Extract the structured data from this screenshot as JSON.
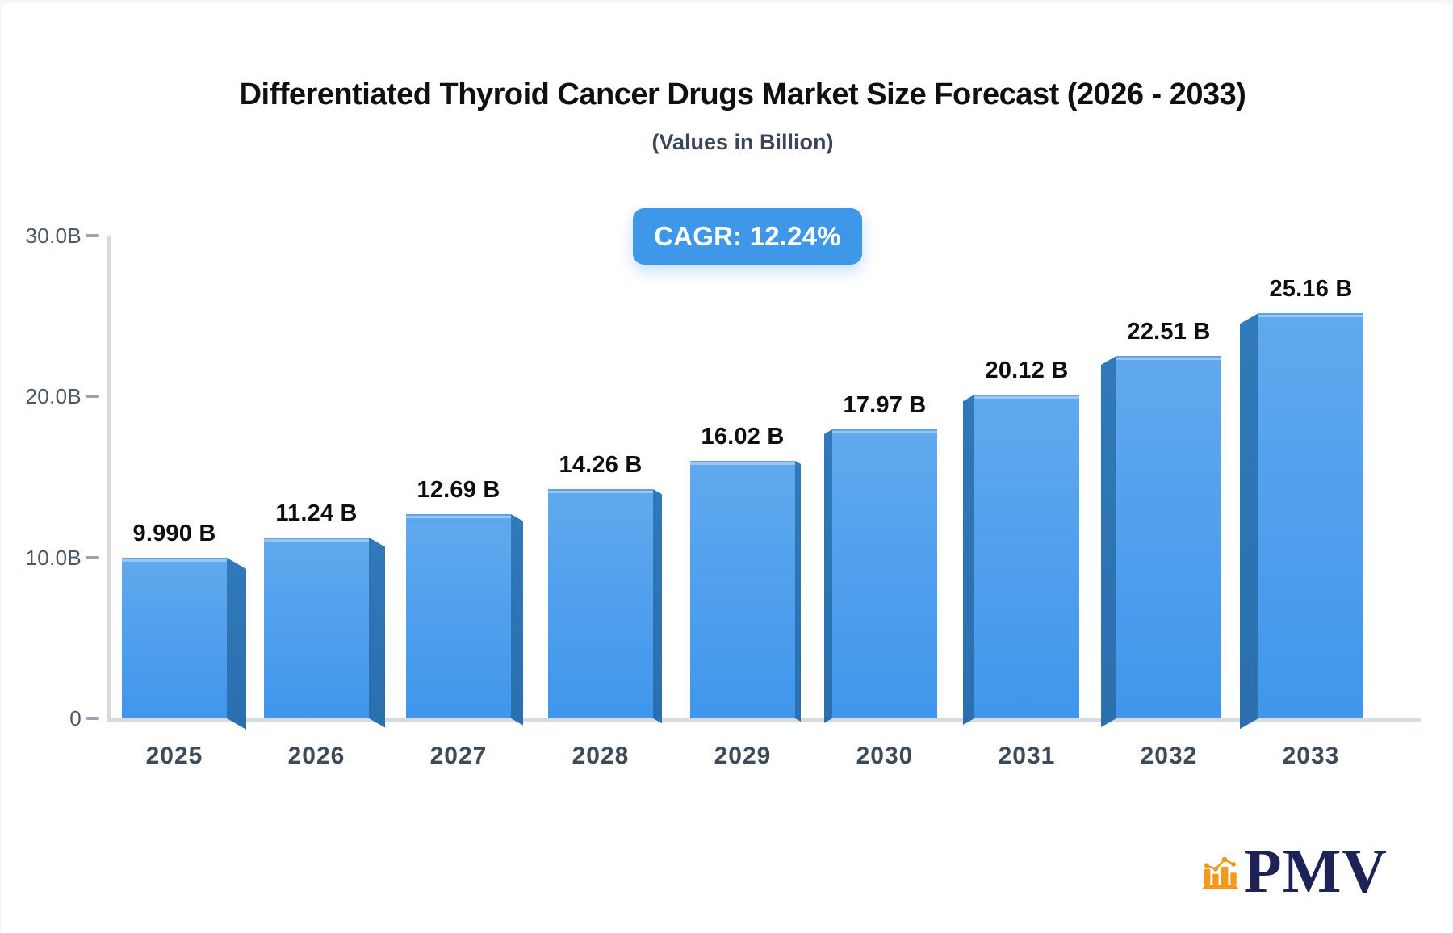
{
  "page": {
    "background": "#f5f6f8",
    "card_background": "#ffffff"
  },
  "header": {
    "title": "Differentiated Thyroid Cancer Drugs Market Size Forecast (2026 - 2033)",
    "subtitle": "(Values in Billion)"
  },
  "cagr_badge": {
    "label": "CAGR: 12.24%",
    "background": "#3e97e9",
    "text_color": "#ffffff"
  },
  "chart_data": {
    "type": "bar",
    "title": "Differentiated Thyroid Cancer Drugs Market Size Forecast (2026 - 2033)",
    "subtitle": "(Values in Billion)",
    "categories": [
      "2025",
      "2026",
      "2027",
      "2028",
      "2029",
      "2030",
      "2031",
      "2032",
      "2033"
    ],
    "values": [
      9.99,
      11.24,
      12.69,
      14.26,
      16.02,
      17.97,
      20.12,
      22.51,
      25.16
    ],
    "value_labels": [
      "9.990 B",
      "11.24 B",
      "12.69 B",
      "14.26 B",
      "16.02 B",
      "17.97 B",
      "20.12 B",
      "22.51 B",
      "25.16 B"
    ],
    "annotation": "CAGR: 12.24%",
    "xlabel": "",
    "ylabel": "",
    "ylim": [
      0,
      30
    ],
    "y_ticks": [
      {
        "value": 30,
        "label": "30.0B"
      },
      {
        "value": 20,
        "label": "20.0B"
      },
      {
        "value": 10,
        "label": "10.0B"
      },
      {
        "value": 0,
        "label": "0"
      }
    ],
    "grid": false,
    "legend": "none",
    "bar_style": "3d-perspective",
    "bar_color_top": "#61a9ee",
    "bar_color_bottom": "#3f96ec",
    "bar_side_color_top": "#3079ba",
    "bar_side_color_bottom": "#2b6fae"
  },
  "logo": {
    "text": "PMV",
    "icon_color": "#f5991d",
    "text_color": "#1d2357"
  }
}
